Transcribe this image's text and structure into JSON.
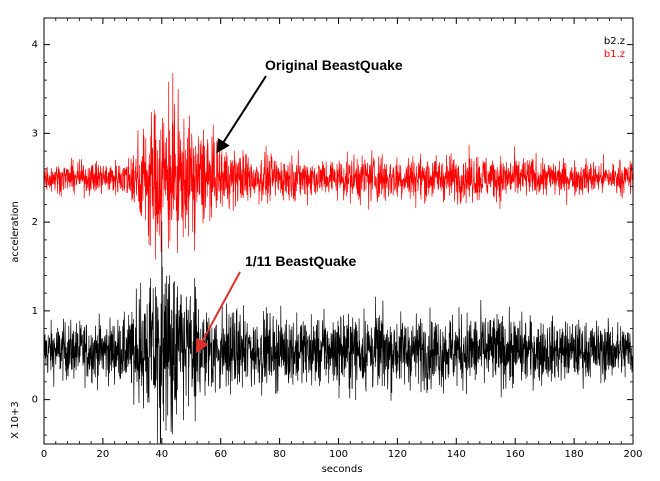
{
  "chart_data": {
    "type": "line",
    "title": "",
    "xlabel": "seconds",
    "ylabel": "acceleration",
    "yscale_label": "X 10+3",
    "xlim": [
      0,
      200
    ],
    "ylim": [
      -0.5,
      4.3
    ],
    "xticks": [
      0,
      20,
      40,
      60,
      80,
      100,
      120,
      140,
      160,
      180,
      200
    ],
    "yticks": [
      0,
      1,
      2,
      3,
      4
    ],
    "grid": false,
    "legend_position": "top-right",
    "series": [
      {
        "name": "b2.z",
        "color": "#000000",
        "baseline": 0.55,
        "background_amplitude": 0.3,
        "envelope": [
          [
            0,
            1.0
          ],
          [
            28,
            1.2
          ],
          [
            33,
            2.0
          ],
          [
            40,
            3.2
          ],
          [
            47,
            2.6
          ],
          [
            55,
            1.8
          ],
          [
            65,
            1.4
          ],
          [
            75,
            1.3
          ],
          [
            90,
            1.25
          ],
          [
            112,
            1.5
          ],
          [
            120,
            1.3
          ],
          [
            150,
            1.4
          ],
          [
            175,
            1.1
          ],
          [
            200,
            1.05
          ]
        ]
      },
      {
        "name": "b1.z",
        "color": "#ff0000",
        "baseline": 2.5,
        "background_amplitude": 0.15,
        "envelope": [
          [
            0,
            1.0
          ],
          [
            28,
            1.3
          ],
          [
            33,
            3.5
          ],
          [
            40,
            6.0
          ],
          [
            47,
            4.5
          ],
          [
            55,
            3.0
          ],
          [
            65,
            2.0
          ],
          [
            80,
            1.6
          ],
          [
            100,
            1.4
          ],
          [
            112,
            2.0
          ],
          [
            120,
            1.6
          ],
          [
            150,
            1.7
          ],
          [
            175,
            1.3
          ],
          [
            200,
            1.2
          ]
        ]
      }
    ],
    "annotations": [
      {
        "text": "Original BeastQuake",
        "target_series": "b1.z",
        "x": 59,
        "y": 2.8,
        "arrow_color": "#000000"
      },
      {
        "text": "1/11 BeastQuake",
        "target_series": "b2.z",
        "x": 52,
        "y": 0.55,
        "arrow_color": "#e0302a"
      }
    ]
  }
}
